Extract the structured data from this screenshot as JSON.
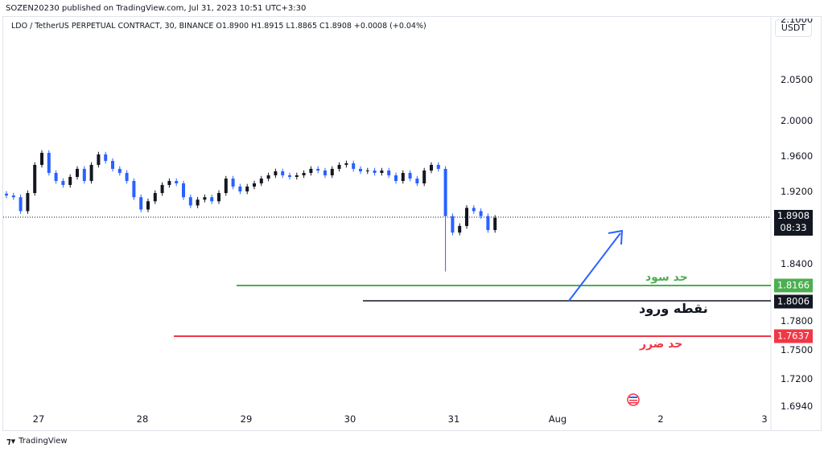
{
  "header": {
    "published": "SOZEN20230 published on TradingView.com, Jul 31, 2023 10:51 UTC+3:30",
    "legend": "LDO / TetherUS PERPETUAL CONTRACT, 30, BINANCE  O1.8900  H1.8915  L1.8865  C1.8908  +0.0008 (+0.04%)"
  },
  "currency": "USDT",
  "footer": {
    "brand": "TradingView"
  },
  "chart_data": {
    "type": "candlestick",
    "symbol": "LDO / TetherUS PERPETUAL CONTRACT",
    "interval": "30",
    "exchange": "BINANCE",
    "x_ticks": [
      "27",
      "28",
      "29",
      "30",
      "31",
      "Aug",
      "2",
      "3"
    ],
    "y_ticks": [
      "2.1000",
      "2.0500",
      "2.0000",
      "1.9600",
      "1.9200",
      "1.8400",
      "1.7800",
      "1.7500",
      "1.7200",
      "1.6940"
    ],
    "closes": [
      1.9155,
      1.9136,
      1.8982,
      1.9182,
      1.95,
      1.9636,
      1.9409,
      1.9318,
      1.9273,
      1.9364,
      1.9455,
      1.9318,
      1.95,
      1.9618,
      1.9545,
      1.9455,
      1.9409,
      1.9318,
      1.9136,
      1.9,
      1.9091,
      1.9182,
      1.9273,
      1.9318,
      1.9291,
      1.9136,
      1.9045,
      1.9109,
      1.9136,
      1.9091,
      1.9182,
      1.9345,
      1.9255,
      1.92,
      1.9255,
      1.9291,
      1.9345,
      1.9382,
      1.9427,
      1.9382,
      1.9364,
      1.9382,
      1.9409,
      1.9455,
      1.9436,
      1.9382,
      1.9455,
      1.95,
      1.9518,
      1.9455,
      1.9427,
      1.9436,
      1.9409,
      1.9436,
      1.9382,
      1.9318,
      1.9409,
      1.9345,
      1.9291,
      1.9436,
      1.95,
      1.9455,
      1.8927,
      1.8745,
      1.8818,
      1.9018,
      1.8982,
      1.8927,
      1.8773,
      1.8908
    ],
    "spike_low": 1.832,
    "last_price": "1.8908",
    "countdown": "08:33",
    "up_color": "#131722",
    "down_color": "#2962ff",
    "levels": [
      {
        "name": "take-profit",
        "price": "1.8166",
        "label": "حد سود",
        "color": "#4caf50"
      },
      {
        "name": "entry",
        "price": "1.8006",
        "label": "نقطه ورود",
        "color": "#131722"
      },
      {
        "name": "stop-loss",
        "price": "1.7637",
        "label": "حد ضرر",
        "color": "#f23645"
      }
    ],
    "arrow_color": "#2962ff"
  }
}
